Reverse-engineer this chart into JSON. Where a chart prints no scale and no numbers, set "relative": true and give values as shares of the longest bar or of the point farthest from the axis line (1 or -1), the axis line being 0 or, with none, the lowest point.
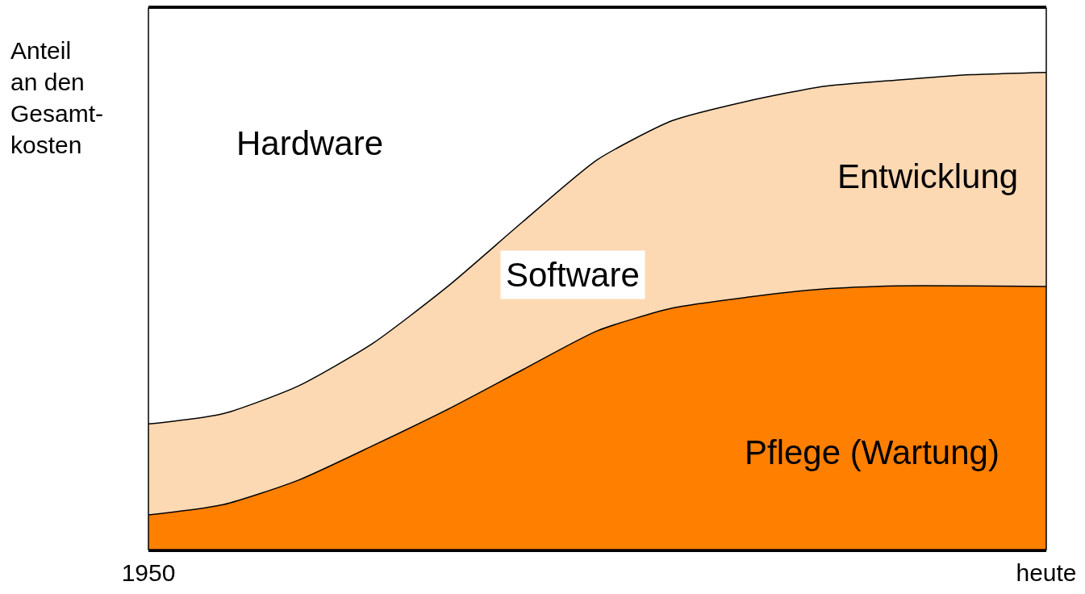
{
  "chart_data": {
    "type": "area",
    "stacked": true,
    "relative": true,
    "ylabel": "Anteil\nan den\nGesamt-\nkosten",
    "tick_labels": "x",
    "legend": false,
    "marker": "none",
    "categories": [
      "1950",
      null,
      null,
      null,
      null,
      null,
      null,
      null,
      null,
      null,
      null,
      null,
      "heute"
    ],
    "series": [
      {
        "name": "Pflege (Wartung)",
        "color": "#ff7f00",
        "values": [
          0.064,
          0.083,
          0.128,
          0.192,
          0.259,
          0.332,
          0.404,
          0.446,
          0.466,
          0.481,
          0.487,
          0.487,
          0.486
        ]
      },
      {
        "name": "Entwicklung",
        "color": "#fdd9b3",
        "values": [
          0.168,
          0.168,
          0.174,
          0.189,
          0.227,
          0.273,
          0.316,
          0.346,
          0.362,
          0.374,
          0.38,
          0.39,
          0.395
        ]
      },
      {
        "name": "Hardware",
        "color": "#ffffff",
        "values": [
          0.768,
          0.749,
          0.698,
          0.619,
          0.514,
          0.395,
          0.28,
          0.208,
          0.172,
          0.145,
          0.133,
          0.123,
          0.119
        ]
      }
    ],
    "annotations": [
      "Software"
    ]
  }
}
